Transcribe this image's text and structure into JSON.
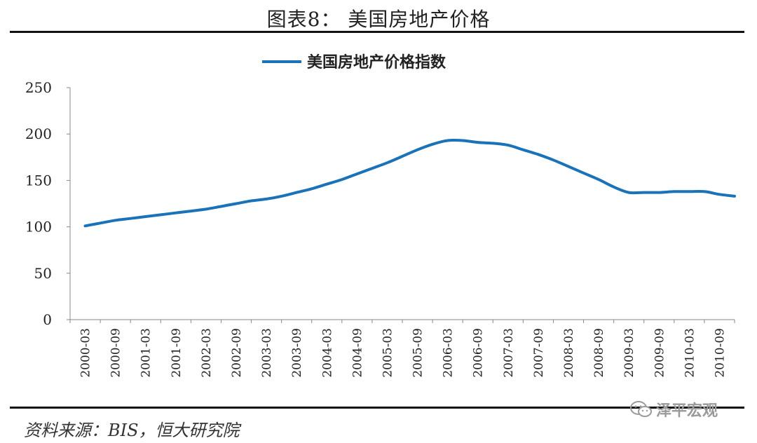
{
  "figure": {
    "title": "图表8：  美国房地产价格",
    "source": "资料来源：BIS，恒大研究院",
    "watermark": "泽平宏观"
  },
  "colors": {
    "line": "#1a72b8",
    "axis": "#888888",
    "text": "#222222"
  },
  "chart_data": {
    "type": "line",
    "title": "",
    "xlabel": "",
    "ylabel": "",
    "ylim": [
      0,
      250
    ],
    "yticks": [
      0,
      50,
      100,
      150,
      200,
      250
    ],
    "grid": false,
    "legend": "top-center",
    "xtick_labels": [
      "2000-03",
      "2000-09",
      "2001-03",
      "2001-09",
      "2002-03",
      "2002-09",
      "2003-03",
      "2003-09",
      "2004-03",
      "2004-09",
      "2005-03",
      "2005-09",
      "2006-03",
      "2006-09",
      "2007-03",
      "2007-09",
      "2008-03",
      "2008-09",
      "2009-03",
      "2009-09",
      "2010-03",
      "2010-09"
    ],
    "series": [
      {
        "name": "美国房地产价格指数",
        "x": [
          "2000-03",
          "2000-06",
          "2000-09",
          "2000-12",
          "2001-03",
          "2001-06",
          "2001-09",
          "2001-12",
          "2002-03",
          "2002-06",
          "2002-09",
          "2002-12",
          "2003-03",
          "2003-06",
          "2003-09",
          "2003-12",
          "2004-03",
          "2004-06",
          "2004-09",
          "2004-12",
          "2005-03",
          "2005-06",
          "2005-09",
          "2005-12",
          "2006-03",
          "2006-06",
          "2006-09",
          "2006-12",
          "2007-03",
          "2007-06",
          "2007-09",
          "2007-12",
          "2008-03",
          "2008-06",
          "2008-09",
          "2008-12",
          "2009-03",
          "2009-06",
          "2009-09",
          "2009-12",
          "2010-03",
          "2010-06",
          "2010-09",
          "2010-12"
        ],
        "values": [
          101,
          104,
          107,
          109,
          111,
          113,
          115,
          117,
          119,
          122,
          125,
          128,
          130,
          133,
          137,
          141,
          146,
          151,
          157,
          163,
          169,
          176,
          183,
          189,
          193,
          193,
          191,
          190,
          188,
          183,
          178,
          172,
          165,
          158,
          151,
          143,
          137,
          137,
          137,
          138,
          138,
          138,
          135,
          133
        ]
      }
    ]
  }
}
